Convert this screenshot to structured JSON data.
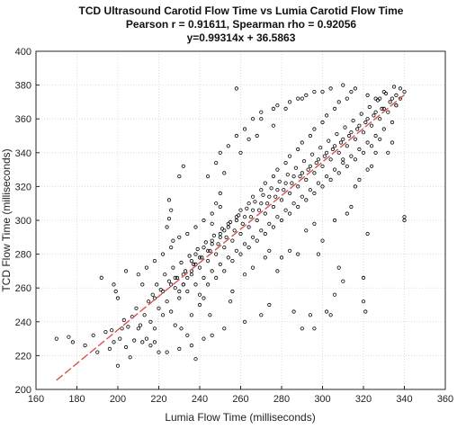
{
  "chart_data": {
    "type": "scatter",
    "title_lines": [
      "TCD Ultrasound Carotid Flow Time vs Lumia Carotid Flow Time",
      "Pearson r = 0.91611, Spearman rho = 0.92056",
      "y=0.99314x + 36.5863"
    ],
    "xlabel": "Lumia Flow Time (milliseconds)",
    "ylabel": "TCD Flow Time (milliseconds)",
    "xlim": [
      160,
      360
    ],
    "ylim": [
      200,
      400
    ],
    "xticks": [
      "160",
      "180",
      "200",
      "220",
      "240",
      "260",
      "280",
      "300",
      "320",
      "340",
      "360"
    ],
    "yticks": [
      "200",
      "220",
      "240",
      "260",
      "280",
      "300",
      "320",
      "340",
      "360",
      "380",
      "400"
    ],
    "grid": true,
    "fit_line": {
      "slope": 0.99314,
      "intercept": 36.5863,
      "x_range": [
        170,
        340
      ],
      "color": "#d9534f",
      "style": "dashed"
    },
    "marker_color": "#000000",
    "points": [
      [
        170,
        230
      ],
      [
        176,
        231
      ],
      [
        178,
        228
      ],
      [
        184,
        226
      ],
      [
        188,
        232
      ],
      [
        190,
        222
      ],
      [
        192,
        266
      ],
      [
        194,
        234
      ],
      [
        196,
        224
      ],
      [
        197,
        235
      ],
      [
        198,
        228
      ],
      [
        199,
        258
      ],
      [
        200,
        214
      ],
      [
        201,
        230
      ],
      [
        202,
        236
      ],
      [
        203,
        241
      ],
      [
        204,
        225
      ],
      [
        205,
        237
      ],
      [
        206,
        219
      ],
      [
        207,
        243
      ],
      [
        208,
        229
      ],
      [
        209,
        248
      ],
      [
        210,
        236
      ],
      [
        211,
        238
      ],
      [
        212,
        262
      ],
      [
        213,
        244
      ],
      [
        214,
        230
      ],
      [
        215,
        252
      ],
      [
        216,
        240
      ],
      [
        217,
        256
      ],
      [
        218,
        236
      ],
      [
        219,
        262
      ],
      [
        220,
        248
      ],
      [
        221,
        259
      ],
      [
        222,
        244
      ],
      [
        223,
        268
      ],
      [
        224,
        252
      ],
      [
        225,
        264
      ],
      [
        226,
        246
      ],
      [
        227,
        272
      ],
      [
        228,
        260
      ],
      [
        229,
        266
      ],
      [
        230,
        254
      ],
      [
        231,
        275
      ],
      [
        232,
        262
      ],
      [
        233,
        270
      ],
      [
        234,
        258
      ],
      [
        235,
        279
      ],
      [
        236,
        268
      ],
      [
        237,
        274
      ],
      [
        238,
        262
      ],
      [
        239,
        283
      ],
      [
        240,
        272
      ],
      [
        241,
        278
      ],
      [
        242,
        266
      ],
      [
        243,
        287
      ],
      [
        244,
        276
      ],
      [
        245,
        282
      ],
      [
        246,
        270
      ],
      [
        247,
        291
      ],
      [
        248,
        280
      ],
      [
        249,
        286
      ],
      [
        250,
        274
      ],
      [
        251,
        295
      ],
      [
        252,
        284
      ],
      [
        253,
        290
      ],
      [
        254,
        278
      ],
      [
        255,
        299
      ],
      [
        256,
        288
      ],
      [
        257,
        294
      ],
      [
        258,
        282
      ],
      [
        259,
        303
      ],
      [
        260,
        292
      ],
      [
        261,
        298
      ],
      [
        262,
        286
      ],
      [
        263,
        307
      ],
      [
        264,
        296
      ],
      [
        265,
        302
      ],
      [
        266,
        290
      ],
      [
        267,
        311
      ],
      [
        268,
        300
      ],
      [
        269,
        306
      ],
      [
        270,
        294
      ],
      [
        271,
        315
      ],
      [
        272,
        304
      ],
      [
        273,
        310
      ],
      [
        274,
        298
      ],
      [
        275,
        319
      ],
      [
        276,
        308
      ],
      [
        277,
        314
      ],
      [
        278,
        302
      ],
      [
        279,
        323
      ],
      [
        280,
        312
      ],
      [
        281,
        318
      ],
      [
        282,
        306
      ],
      [
        283,
        327
      ],
      [
        284,
        316
      ],
      [
        285,
        322
      ],
      [
        286,
        310
      ],
      [
        287,
        331
      ],
      [
        288,
        320
      ],
      [
        289,
        326
      ],
      [
        290,
        314
      ],
      [
        291,
        335
      ],
      [
        292,
        324
      ],
      [
        293,
        330
      ],
      [
        294,
        318
      ],
      [
        295,
        339
      ],
      [
        296,
        328
      ],
      [
        297,
        334
      ],
      [
        298,
        322
      ],
      [
        299,
        343
      ],
      [
        300,
        332
      ],
      [
        301,
        338
      ],
      [
        302,
        326
      ],
      [
        303,
        347
      ],
      [
        304,
        336
      ],
      [
        305,
        342
      ],
      [
        306,
        330
      ],
      [
        307,
        351
      ],
      [
        308,
        340
      ],
      [
        309,
        346
      ],
      [
        310,
        334
      ],
      [
        311,
        355
      ],
      [
        312,
        344
      ],
      [
        313,
        350
      ],
      [
        314,
        338
      ],
      [
        315,
        359
      ],
      [
        316,
        348
      ],
      [
        317,
        354
      ],
      [
        318,
        342
      ],
      [
        319,
        363
      ],
      [
        320,
        352
      ],
      [
        321,
        358
      ],
      [
        322,
        346
      ],
      [
        323,
        367
      ],
      [
        324,
        356
      ],
      [
        325,
        362
      ],
      [
        326,
        350
      ],
      [
        327,
        371
      ],
      [
        328,
        360
      ],
      [
        329,
        366
      ],
      [
        330,
        354
      ],
      [
        331,
        375
      ],
      [
        332,
        364
      ],
      [
        333,
        370
      ],
      [
        334,
        358
      ],
      [
        335,
        379
      ],
      [
        336,
        368
      ],
      [
        338,
        372
      ],
      [
        340,
        376
      ],
      [
        225,
        301
      ],
      [
        226,
        306
      ],
      [
        224,
        296
      ],
      [
        227,
        288
      ],
      [
        225,
        312
      ],
      [
        230,
        326
      ],
      [
        232,
        332
      ],
      [
        228,
        238
      ],
      [
        231,
        236
      ],
      [
        234,
        232
      ],
      [
        236,
        244
      ],
      [
        238,
        218
      ],
      [
        240,
        250
      ],
      [
        242,
        254
      ],
      [
        245,
        244
      ],
      [
        246,
        298
      ],
      [
        248,
        310
      ],
      [
        250,
        316
      ],
      [
        252,
        328
      ],
      [
        255,
        252
      ],
      [
        256,
        258
      ],
      [
        258,
        378
      ],
      [
        260,
        340
      ],
      [
        262,
        268
      ],
      [
        264,
        348
      ],
      [
        266,
        272
      ],
      [
        268,
        350
      ],
      [
        270,
        360
      ],
      [
        272,
        278
      ],
      [
        274,
        282
      ],
      [
        276,
        356
      ],
      [
        278,
        270
      ],
      [
        280,
        278
      ],
      [
        282,
        366
      ],
      [
        284,
        282
      ],
      [
        286,
        246
      ],
      [
        288,
        280
      ],
      [
        290,
        372
      ],
      [
        292,
        294
      ],
      [
        294,
        244
      ],
      [
        296,
        298
      ],
      [
        298,
        280
      ],
      [
        300,
        288
      ],
      [
        302,
        246
      ],
      [
        304,
        244
      ],
      [
        306,
        300
      ],
      [
        308,
        272
      ],
      [
        310,
        336
      ],
      [
        312,
        304
      ],
      [
        314,
        308
      ],
      [
        316,
        320
      ],
      [
        318,
        324
      ],
      [
        320,
        266
      ],
      [
        322,
        330
      ],
      [
        324,
        332
      ],
      [
        326,
        340
      ],
      [
        328,
        372
      ],
      [
        330,
        376
      ],
      [
        332,
        340
      ],
      [
        334,
        346
      ],
      [
        336,
        368
      ],
      [
        338,
        378
      ],
      [
        340,
        300
      ],
      [
        340,
        302
      ],
      [
        320,
        252
      ],
      [
        321,
        246
      ],
      [
        322,
        292
      ],
      [
        310,
        264
      ],
      [
        306,
        256
      ],
      [
        296,
        236
      ],
      [
        290,
        236
      ],
      [
        274,
        250
      ],
      [
        270,
        244
      ],
      [
        262,
        240
      ],
      [
        252,
        236
      ],
      [
        246,
        232
      ],
      [
        242,
        230
      ],
      [
        236,
        226
      ],
      [
        230,
        224
      ],
      [
        224,
        222
      ],
      [
        220,
        222
      ],
      [
        218,
        228
      ],
      [
        216,
        226
      ],
      [
        212,
        228
      ],
      [
        244,
        326
      ],
      [
        248,
        334
      ],
      [
        250,
        340
      ],
      [
        254,
        344
      ],
      [
        258,
        350
      ],
      [
        262,
        354
      ],
      [
        266,
        360
      ],
      [
        270,
        364
      ],
      [
        276,
        366
      ],
      [
        278,
        368
      ],
      [
        284,
        370
      ],
      [
        288,
        372
      ],
      [
        292,
        374
      ],
      [
        296,
        376
      ],
      [
        300,
        376
      ],
      [
        304,
        378
      ],
      [
        310,
        380
      ],
      [
        316,
        378
      ],
      [
        322,
        374
      ],
      [
        326,
        372
      ],
      [
        334,
        372
      ],
      [
        336,
        374
      ],
      [
        200,
        254
      ],
      [
        198,
        262
      ],
      [
        204,
        270
      ],
      [
        210,
        268
      ],
      [
        214,
        272
      ],
      [
        218,
        276
      ],
      [
        222,
        280
      ],
      [
        226,
        284
      ],
      [
        230,
        290
      ],
      [
        234,
        292
      ],
      [
        238,
        296
      ],
      [
        242,
        300
      ],
      [
        246,
        304
      ],
      [
        250,
        308
      ],
      [
        230,
        258
      ],
      [
        232,
        262
      ],
      [
        234,
        266
      ],
      [
        236,
        270
      ],
      [
        238,
        274
      ],
      [
        240,
        278
      ],
      [
        244,
        282
      ],
      [
        246,
        286
      ],
      [
        250,
        290
      ],
      [
        252,
        294
      ],
      [
        254,
        298
      ],
      [
        258,
        302
      ],
      [
        260,
        306
      ],
      [
        264,
        310
      ],
      [
        266,
        314
      ],
      [
        270,
        318
      ],
      [
        272,
        322
      ],
      [
        276,
        326
      ],
      [
        278,
        330
      ],
      [
        282,
        334
      ],
      [
        284,
        338
      ],
      [
        288,
        342
      ],
      [
        290,
        346
      ],
      [
        294,
        350
      ],
      [
        296,
        354
      ],
      [
        300,
        358
      ],
      [
        302,
        362
      ],
      [
        306,
        366
      ],
      [
        308,
        370
      ],
      [
        312,
        372
      ],
      [
        314,
        376
      ],
      [
        240,
        256
      ],
      [
        244,
        262
      ],
      [
        248,
        266
      ],
      [
        252,
        270
      ],
      [
        256,
        276
      ],
      [
        260,
        280
      ],
      [
        264,
        284
      ],
      [
        268,
        288
      ],
      [
        272,
        292
      ],
      [
        276,
        296
      ],
      [
        280,
        300
      ],
      [
        284,
        304
      ],
      [
        288,
        308
      ],
      [
        292,
        312
      ],
      [
        296,
        316
      ],
      [
        300,
        320
      ],
      [
        304,
        324
      ],
      [
        308,
        328
      ],
      [
        312,
        332
      ],
      [
        316,
        336
      ],
      [
        320,
        340
      ],
      [
        324,
        344
      ],
      [
        328,
        348
      ],
      [
        218,
        254
      ],
      [
        222,
        258
      ],
      [
        226,
        262
      ],
      [
        228,
        266
      ],
      [
        232,
        268
      ],
      [
        236,
        276
      ],
      [
        238,
        280
      ],
      [
        242,
        284
      ],
      [
        246,
        288
      ],
      [
        250,
        292
      ],
      [
        254,
        296
      ],
      [
        258,
        300
      ],
      [
        262,
        302
      ],
      [
        266,
        306
      ],
      [
        270,
        310
      ],
      [
        274,
        314
      ],
      [
        278,
        318
      ],
      [
        282,
        322
      ],
      [
        286,
        326
      ],
      [
        290,
        328
      ],
      [
        294,
        332
      ],
      [
        298,
        336
      ],
      [
        302,
        340
      ],
      [
        306,
        344
      ],
      [
        310,
        348
      ],
      [
        314,
        352
      ],
      [
        318,
        356
      ],
      [
        322,
        360
      ],
      [
        326,
        364
      ],
      [
        330,
        366
      ]
    ]
  }
}
